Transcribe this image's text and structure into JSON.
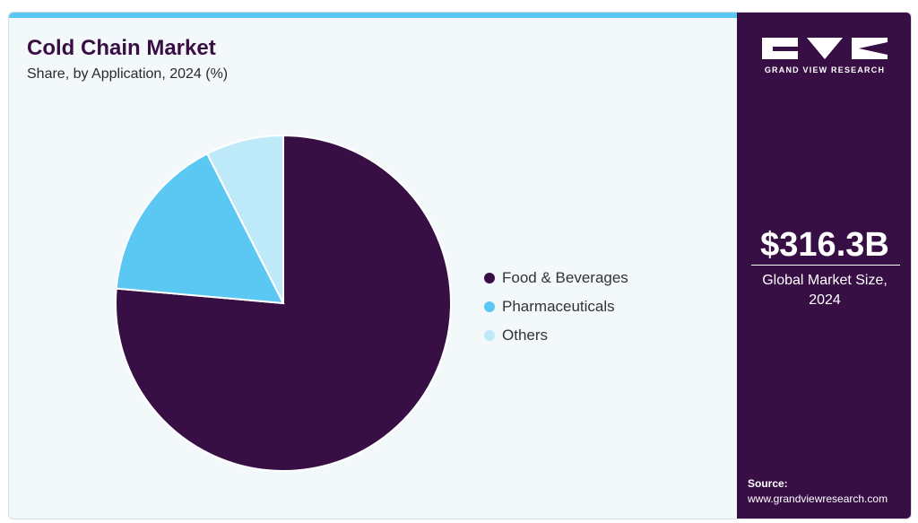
{
  "header": {
    "title": "Cold Chain Market",
    "subtitle": "Share, by Application, 2024 (%)"
  },
  "chart_data": {
    "type": "pie",
    "categories": [
      "Food & Beverages",
      "Pharmaceuticals",
      "Others"
    ],
    "values": [
      76.4,
      16.1,
      7.5
    ],
    "colors": [
      "#370f45",
      "#5ac8f2",
      "#bde9f9"
    ],
    "legend_position": "right"
  },
  "sidebar": {
    "brand": "GRAND VIEW RESEARCH",
    "market_size": "$316.3B",
    "market_size_label": "Global Market Size, 2024",
    "source_label": "Source:",
    "source_url": "www.grandviewresearch.com"
  }
}
